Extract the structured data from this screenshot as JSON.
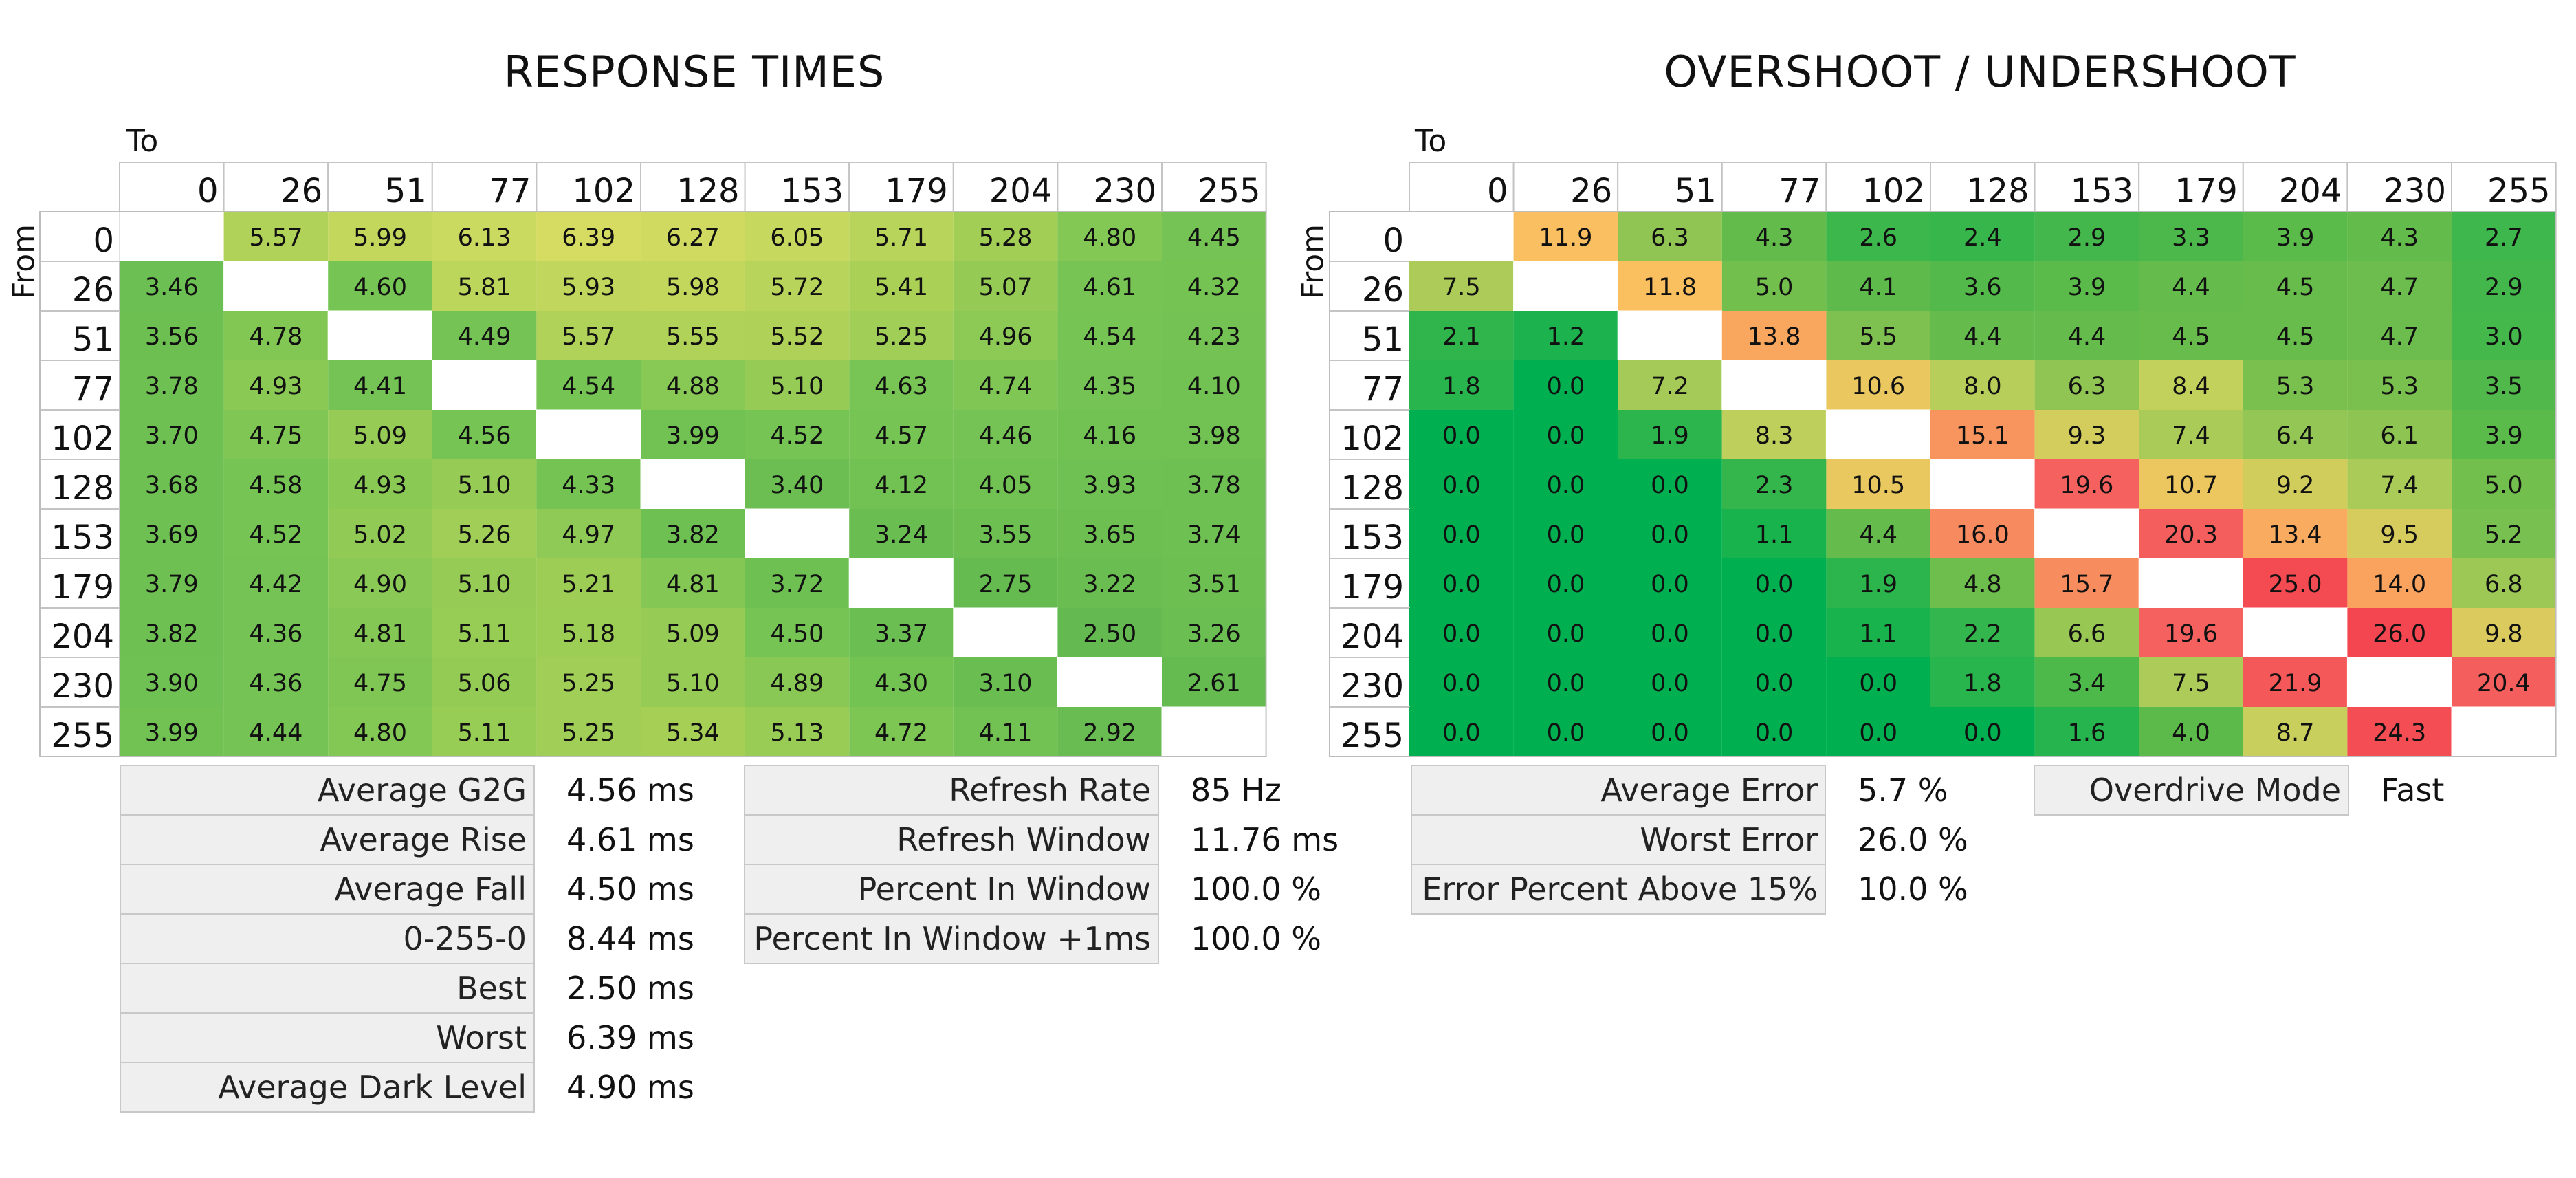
{
  "levels": [
    "0",
    "26",
    "51",
    "77",
    "102",
    "128",
    "153",
    "179",
    "204",
    "230",
    "255"
  ],
  "axes": {
    "to_label": "To",
    "from_label": "From"
  },
  "response_times": {
    "title": "RESPONSE TIMES",
    "stats_left": [
      {
        "label": "Average G2G",
        "value": "4.56 ms"
      },
      {
        "label": "Average Rise",
        "value": "4.61 ms"
      },
      {
        "label": "Average Fall",
        "value": "4.50 ms"
      },
      {
        "label": "0-255-0",
        "value": "8.44 ms"
      },
      {
        "label": "Best",
        "value": "2.50 ms"
      },
      {
        "label": "Worst",
        "value": "6.39 ms"
      },
      {
        "label": "Average Dark Level",
        "value": "4.90 ms"
      }
    ],
    "stats_right": [
      {
        "label": "Refresh Rate",
        "value": "85 Hz"
      },
      {
        "label": "Refresh Window",
        "value": "11.76 ms"
      },
      {
        "label": "Percent In Window",
        "value": "100.0 %"
      },
      {
        "label": "Percent In Window +1ms",
        "value": "100.0 %"
      }
    ]
  },
  "overshoot": {
    "title": "OVERSHOOT / UNDERSHOOT",
    "stats_left": [
      {
        "label": "Average Error",
        "value": "5.7 %"
      },
      {
        "label": "Worst Error",
        "value": "26.0 %"
      },
      {
        "label": "Error Percent Above 15%",
        "value": "10.0 %"
      }
    ],
    "stats_right": [
      {
        "label": "Overdrive Mode",
        "value": "Fast"
      }
    ]
  },
  "chart_data": [
    {
      "type": "heatmap",
      "title": "RESPONSE TIMES",
      "xlabel": "To",
      "ylabel": "From",
      "x": [
        "0",
        "26",
        "51",
        "77",
        "102",
        "128",
        "153",
        "179",
        "204",
        "230",
        "255"
      ],
      "y": [
        "0",
        "26",
        "51",
        "77",
        "102",
        "128",
        "153",
        "179",
        "204",
        "230",
        "255"
      ],
      "values": [
        [
          null,
          "5.57",
          "5.99",
          "6.13",
          "6.39",
          "6.27",
          "6.05",
          "5.71",
          "5.28",
          "4.80",
          "4.45"
        ],
        [
          "3.46",
          null,
          "4.60",
          "5.81",
          "5.93",
          "5.98",
          "5.72",
          "5.41",
          "5.07",
          "4.61",
          "4.32"
        ],
        [
          "3.56",
          "4.78",
          null,
          "4.49",
          "5.57",
          "5.55",
          "5.52",
          "5.25",
          "4.96",
          "4.54",
          "4.23"
        ],
        [
          "3.78",
          "4.93",
          "4.41",
          null,
          "4.54",
          "4.88",
          "5.10",
          "4.63",
          "4.74",
          "4.35",
          "4.10"
        ],
        [
          "3.70",
          "4.75",
          "5.09",
          "4.56",
          null,
          "3.99",
          "4.52",
          "4.57",
          "4.46",
          "4.16",
          "3.98"
        ],
        [
          "3.68",
          "4.58",
          "4.93",
          "5.10",
          "4.33",
          null,
          "3.40",
          "4.12",
          "4.05",
          "3.93",
          "3.78"
        ],
        [
          "3.69",
          "4.52",
          "5.02",
          "5.26",
          "4.97",
          "3.82",
          null,
          "3.24",
          "3.55",
          "3.65",
          "3.74"
        ],
        [
          "3.79",
          "4.42",
          "4.90",
          "5.10",
          "5.21",
          "4.81",
          "3.72",
          null,
          "2.75",
          "3.22",
          "3.51"
        ],
        [
          "3.82",
          "4.36",
          "4.81",
          "5.11",
          "5.18",
          "5.09",
          "4.50",
          "3.37",
          null,
          "2.50",
          "3.26"
        ],
        [
          "3.90",
          "4.36",
          "4.75",
          "5.06",
          "5.25",
          "5.10",
          "4.89",
          "4.30",
          "3.10",
          null,
          "2.61"
        ],
        [
          "3.99",
          "4.44",
          "4.80",
          "5.11",
          "5.25",
          "5.34",
          "5.13",
          "4.72",
          "4.11",
          "2.92",
          null
        ]
      ]
    },
    {
      "type": "heatmap",
      "title": "OVERSHOOT / UNDERSHOOT",
      "xlabel": "To",
      "ylabel": "From",
      "x": [
        "0",
        "26",
        "51",
        "77",
        "102",
        "128",
        "153",
        "179",
        "204",
        "230",
        "255"
      ],
      "y": [
        "0",
        "26",
        "51",
        "77",
        "102",
        "128",
        "153",
        "179",
        "204",
        "230",
        "255"
      ],
      "values": [
        [
          null,
          "11.9",
          "6.3",
          "4.3",
          "2.6",
          "2.4",
          "2.9",
          "3.3",
          "3.9",
          "4.3",
          "2.7"
        ],
        [
          "7.5",
          null,
          "11.8",
          "5.0",
          "4.1",
          "3.6",
          "3.9",
          "4.4",
          "4.5",
          "4.7",
          "2.9"
        ],
        [
          "2.1",
          "1.2",
          null,
          "13.8",
          "5.5",
          "4.4",
          "4.4",
          "4.5",
          "4.5",
          "4.7",
          "3.0"
        ],
        [
          "1.8",
          "0.0",
          "7.2",
          null,
          "10.6",
          "8.0",
          "6.3",
          "8.4",
          "5.3",
          "5.3",
          "3.5"
        ],
        [
          "0.0",
          "0.0",
          "1.9",
          "8.3",
          null,
          "15.1",
          "9.3",
          "7.4",
          "6.4",
          "6.1",
          "3.9"
        ],
        [
          "0.0",
          "0.0",
          "0.0",
          "2.3",
          "10.5",
          null,
          "19.6",
          "10.7",
          "9.2",
          "7.4",
          "5.0"
        ],
        [
          "0.0",
          "0.0",
          "0.0",
          "1.1",
          "4.4",
          "16.0",
          null,
          "20.3",
          "13.4",
          "9.5",
          "5.2"
        ],
        [
          "0.0",
          "0.0",
          "0.0",
          "0.0",
          "1.9",
          "4.8",
          "15.7",
          null,
          "25.0",
          "14.0",
          "6.8"
        ],
        [
          "0.0",
          "0.0",
          "0.0",
          "0.0",
          "1.1",
          "2.2",
          "6.6",
          "19.6",
          null,
          "26.0",
          "9.8"
        ],
        [
          "0.0",
          "0.0",
          "0.0",
          "0.0",
          "0.0",
          "1.8",
          "3.4",
          "7.5",
          "21.9",
          null,
          "20.4"
        ],
        [
          "0.0",
          "0.0",
          "0.0",
          "0.0",
          "0.0",
          "0.0",
          "1.6",
          "4.0",
          "8.7",
          "24.3",
          null
        ]
      ]
    }
  ]
}
